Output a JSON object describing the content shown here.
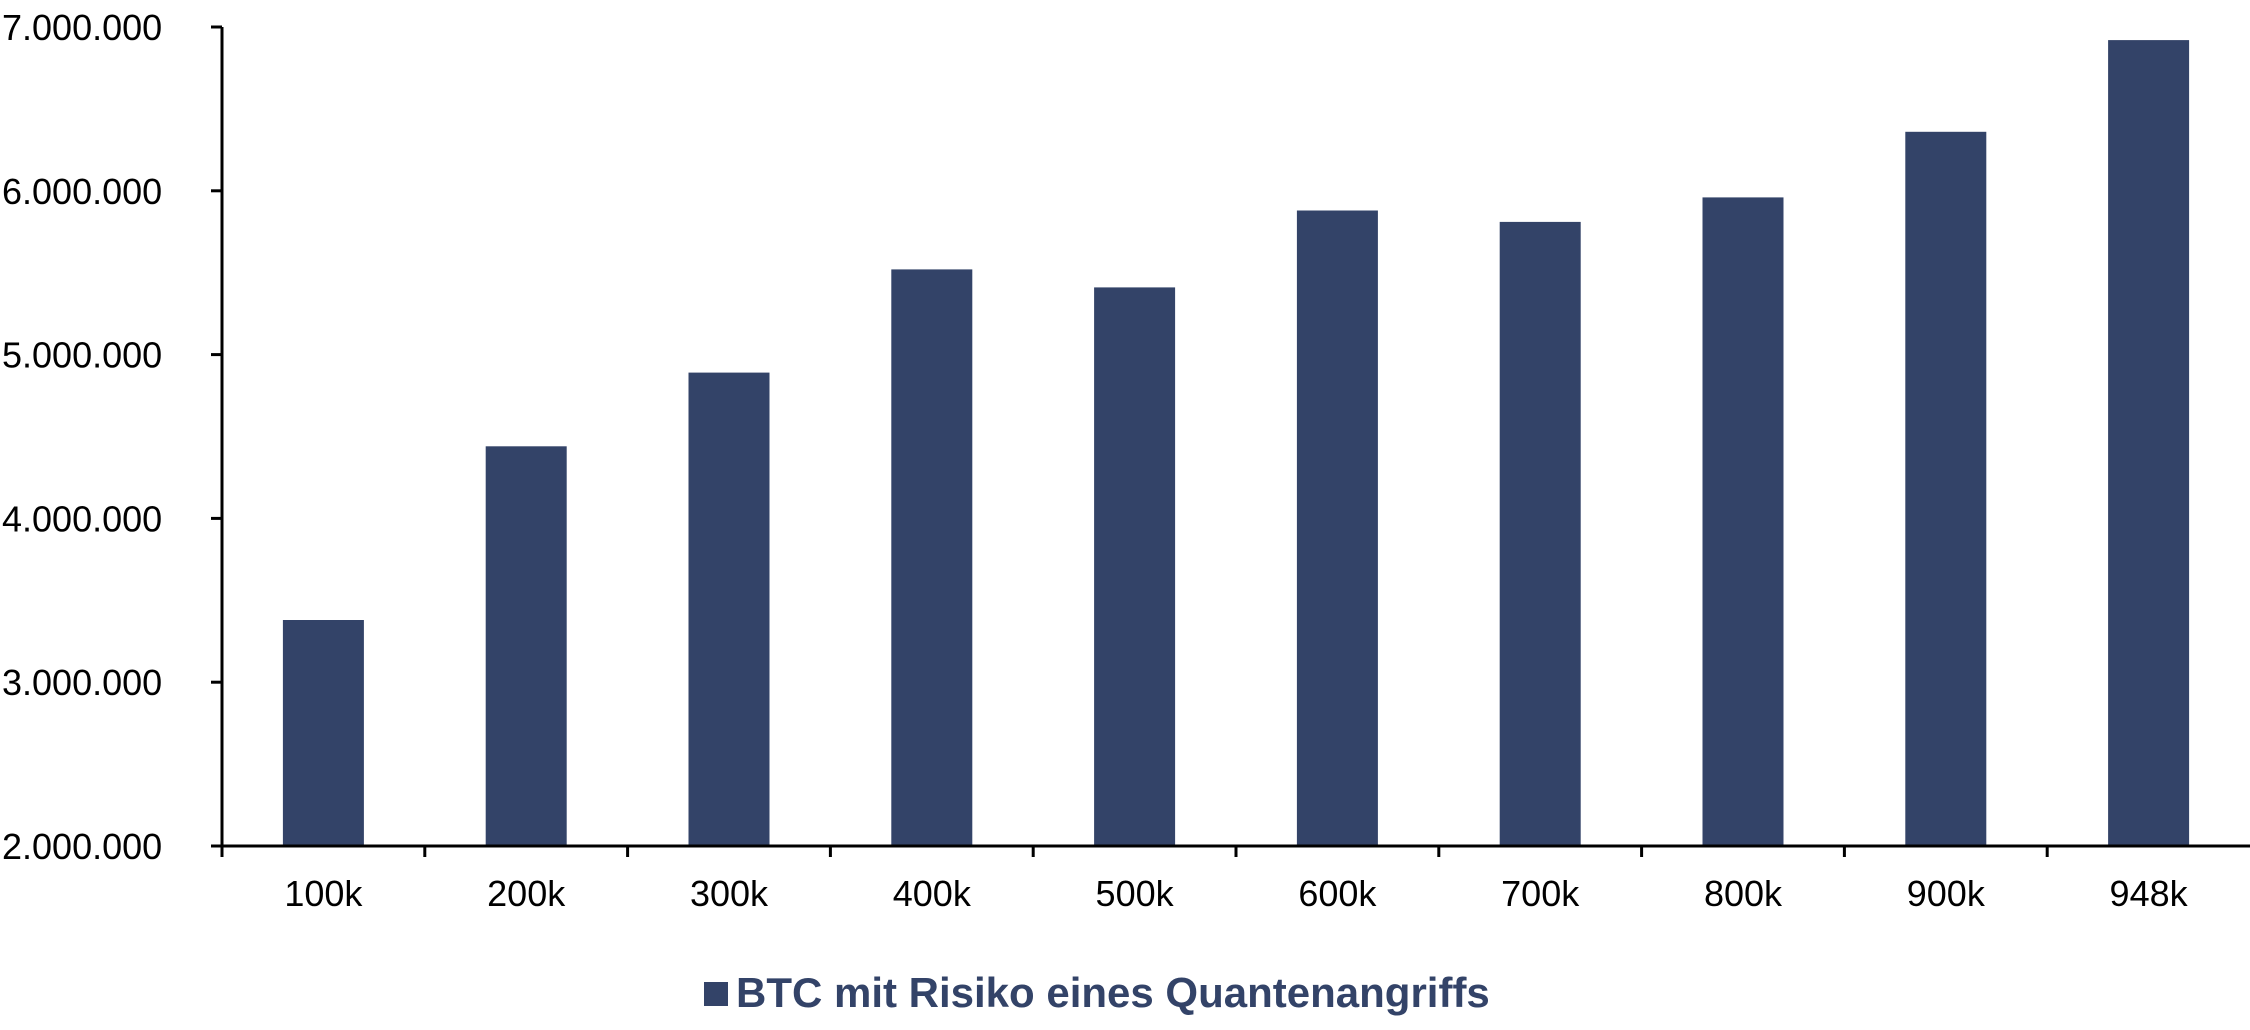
{
  "chart_data": {
    "type": "bar",
    "categories": [
      "100k",
      "200k",
      "300k",
      "400k",
      "500k",
      "600k",
      "700k",
      "800k",
      "900k",
      "948k"
    ],
    "series": [
      {
        "name": "BTC mit Risiko eines Quantenangriffs",
        "color": "#334368",
        "values": [
          3380000,
          4440000,
          4890000,
          5520000,
          5410000,
          5880000,
          5810000,
          5960000,
          6360000,
          6920000
        ]
      }
    ],
    "ylim": [
      2000000,
      7000000
    ],
    "yticks": [
      2000000,
      3000000,
      4000000,
      5000000,
      6000000,
      7000000
    ],
    "ytick_labels": [
      "2.000.000",
      "3.000.000",
      "4.000.000",
      "5.000.000",
      "6.000.000",
      "7.000.000"
    ],
    "grid": false,
    "legend_position": "bottom-center"
  }
}
